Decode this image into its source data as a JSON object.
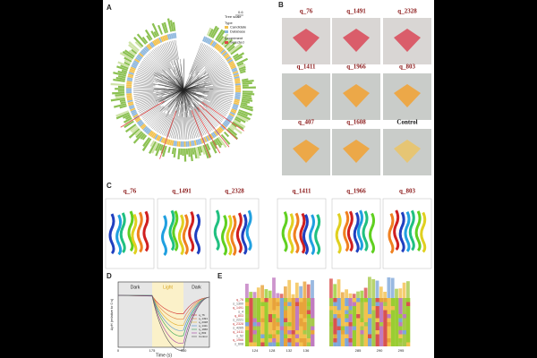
{
  "panels": {
    "a": {
      "letter": "A",
      "tree_scale": "Tree scale",
      "scale_value": "0.6",
      "type_title": "Type",
      "type_items": [
        "Candidate",
        "Database"
      ],
      "experiment_title": "Experiment",
      "experiment_items": [
        "Selected"
      ]
    },
    "b": {
      "letter": "B",
      "labels": [
        "q_76",
        "q_1491",
        "q_2328",
        "q_1411",
        "q_1966",
        "q_803",
        "q_407",
        "q_1608",
        "Control"
      ]
    },
    "c": {
      "letter": "C",
      "labels": [
        "q_76",
        "q_1491",
        "q_2328",
        "q_1411",
        "q_1966",
        "q_803"
      ]
    },
    "d": {
      "letter": "D",
      "phases": [
        "Dark",
        "Light",
        "Dark"
      ],
      "x_label": "Time (s)",
      "y_label": "ΔpH (relative to 0 s)",
      "x_ticks": [
        "0",
        "175",
        "350"
      ],
      "legend": [
        "q_76",
        "q_1491",
        "q_2328",
        "q_1411",
        "q_1966",
        "q_803",
        "Control"
      ]
    },
    "e": {
      "letter": "E",
      "names": [
        "q_76",
        "s_1300",
        "q_1491",
        "s_4",
        "q_803",
        "s_2221",
        "q_2328",
        "s_4265",
        "q_1411",
        "s_52",
        "q_1966",
        "s_608"
      ],
      "ticks_left": [
        "124",
        "128",
        "132",
        "136"
      ],
      "ticks_right": [
        "285",
        "290",
        "295"
      ]
    }
  }
}
